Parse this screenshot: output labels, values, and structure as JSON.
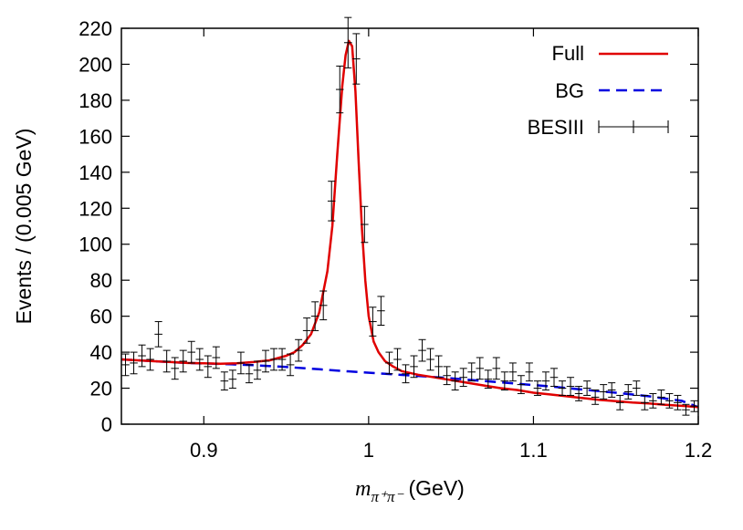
{
  "chart_data": {
    "type": "line",
    "xlabel_math": "m",
    "xlabel_sub": "π⁺π⁻",
    "xlabel_unit": "(GeV)",
    "ylabel": "Events / (0.005 GeV)",
    "xlim": [
      0.85,
      1.2
    ],
    "ylim": [
      0,
      220
    ],
    "x_ticks": [
      0.9,
      1.0,
      1.1,
      1.2
    ],
    "x_tick_labels": [
      "0.9",
      "1",
      "1.1",
      "1.2"
    ],
    "y_ticks": [
      0,
      20,
      40,
      60,
      80,
      100,
      120,
      140,
      160,
      180,
      200,
      220
    ],
    "y_tick_labels": [
      "0",
      "20",
      "40",
      "60",
      "80",
      "100",
      "120",
      "140",
      "160",
      "180",
      "200",
      "220"
    ],
    "legend_position": "top-right",
    "series": [
      {
        "name": "Full",
        "style": "solid-line",
        "color": "#e00000",
        "x": [
          0.85,
          0.86,
          0.87,
          0.88,
          0.89,
          0.9,
          0.91,
          0.92,
          0.93,
          0.94,
          0.95,
          0.955,
          0.96,
          0.965,
          0.97,
          0.975,
          0.978,
          0.981,
          0.984,
          0.986,
          0.988,
          0.99,
          0.992,
          0.994,
          0.996,
          0.998,
          1.0,
          1.003,
          1.006,
          1.01,
          1.015,
          1.02,
          1.03,
          1.04,
          1.05,
          1.06,
          1.07,
          1.08,
          1.09,
          1.1,
          1.11,
          1.12,
          1.13,
          1.14,
          1.15,
          1.16,
          1.17,
          1.18,
          1.19,
          1.2
        ],
        "y": [
          36,
          35.5,
          35,
          34.5,
          34,
          33.8,
          33.6,
          33.8,
          34.5,
          35.5,
          38,
          40,
          44,
          50,
          62,
          85,
          110,
          150,
          188,
          205,
          213,
          210,
          185,
          145,
          108,
          80,
          60,
          46,
          40,
          35,
          32,
          29.5,
          27.5,
          26,
          24.5,
          23,
          21.5,
          20,
          19,
          17.5,
          16.5,
          15.5,
          14.5,
          13.5,
          12.8,
          12,
          11.5,
          10.8,
          10.2,
          9.5
        ]
      },
      {
        "name": "BG",
        "style": "dashed-line",
        "color": "#0000e0",
        "x": [
          0.85,
          0.87,
          0.89,
          0.91,
          0.93,
          0.95,
          0.97,
          0.99,
          1.01,
          1.03,
          1.05,
          1.07,
          1.09,
          1.11,
          1.13,
          1.15,
          1.17,
          1.19,
          1.2
        ],
        "y": [
          36,
          35,
          34,
          33.5,
          32.8,
          31.8,
          30.5,
          29.2,
          28,
          26.8,
          25.5,
          24,
          22.5,
          21,
          19.2,
          17.5,
          15.5,
          13,
          9.5
        ]
      },
      {
        "name": "BESIII",
        "style": "error-bars",
        "color": "#000000",
        "points": [
          {
            "x": 0.8525,
            "y": 33,
            "err": 6
          },
          {
            "x": 0.8575,
            "y": 34,
            "err": 6
          },
          {
            "x": 0.8625,
            "y": 38,
            "err": 6
          },
          {
            "x": 0.8675,
            "y": 36,
            "err": 6
          },
          {
            "x": 0.8725,
            "y": 50,
            "err": 7
          },
          {
            "x": 0.8775,
            "y": 35,
            "err": 6
          },
          {
            "x": 0.8825,
            "y": 31,
            "err": 6
          },
          {
            "x": 0.8875,
            "y": 35,
            "err": 6
          },
          {
            "x": 0.8925,
            "y": 40,
            "err": 6
          },
          {
            "x": 0.8975,
            "y": 36,
            "err": 6
          },
          {
            "x": 0.9025,
            "y": 32,
            "err": 6
          },
          {
            "x": 0.9075,
            "y": 37,
            "err": 6
          },
          {
            "x": 0.9125,
            "y": 24,
            "err": 5
          },
          {
            "x": 0.9175,
            "y": 25,
            "err": 5
          },
          {
            "x": 0.9225,
            "y": 34,
            "err": 6
          },
          {
            "x": 0.9275,
            "y": 28,
            "err": 5
          },
          {
            "x": 0.9325,
            "y": 30,
            "err": 5
          },
          {
            "x": 0.9375,
            "y": 35,
            "err": 6
          },
          {
            "x": 0.9425,
            "y": 36,
            "err": 6
          },
          {
            "x": 0.9475,
            "y": 36,
            "err": 6
          },
          {
            "x": 0.9525,
            "y": 33,
            "err": 6
          },
          {
            "x": 0.9575,
            "y": 41,
            "err": 6
          },
          {
            "x": 0.9625,
            "y": 52,
            "err": 7
          },
          {
            "x": 0.9675,
            "y": 60,
            "err": 8
          },
          {
            "x": 0.9725,
            "y": 66,
            "err": 8
          },
          {
            "x": 0.9775,
            "y": 124,
            "err": 11
          },
          {
            "x": 0.9825,
            "y": 186,
            "err": 13
          },
          {
            "x": 0.9875,
            "y": 212,
            "err": 14
          },
          {
            "x": 0.9925,
            "y": 203,
            "err": 14
          },
          {
            "x": 0.9975,
            "y": 111,
            "err": 10
          },
          {
            "x": 1.0025,
            "y": 57,
            "err": 8
          },
          {
            "x": 1.0075,
            "y": 63,
            "err": 8
          },
          {
            "x": 1.0125,
            "y": 34,
            "err": 6
          },
          {
            "x": 1.0175,
            "y": 36,
            "err": 6
          },
          {
            "x": 1.0225,
            "y": 28,
            "err": 5
          },
          {
            "x": 1.0275,
            "y": 32,
            "err": 6
          },
          {
            "x": 1.0325,
            "y": 41,
            "err": 6
          },
          {
            "x": 1.0375,
            "y": 36,
            "err": 6
          },
          {
            "x": 1.0425,
            "y": 32,
            "err": 6
          },
          {
            "x": 1.0475,
            "y": 27,
            "err": 5
          },
          {
            "x": 1.0525,
            "y": 24,
            "err": 5
          },
          {
            "x": 1.0575,
            "y": 26,
            "err": 5
          },
          {
            "x": 1.0625,
            "y": 29,
            "err": 5
          },
          {
            "x": 1.0675,
            "y": 31,
            "err": 6
          },
          {
            "x": 1.0725,
            "y": 25,
            "err": 5
          },
          {
            "x": 1.0775,
            "y": 31,
            "err": 6
          },
          {
            "x": 1.0825,
            "y": 24,
            "err": 5
          },
          {
            "x": 1.0875,
            "y": 29,
            "err": 5
          },
          {
            "x": 1.0925,
            "y": 22,
            "err": 5
          },
          {
            "x": 1.0975,
            "y": 29,
            "err": 5
          },
          {
            "x": 1.1025,
            "y": 20,
            "err": 4
          },
          {
            "x": 1.1075,
            "y": 24,
            "err": 5
          },
          {
            "x": 1.1125,
            "y": 26,
            "err": 5
          },
          {
            "x": 1.1175,
            "y": 20,
            "err": 4
          },
          {
            "x": 1.1225,
            "y": 21,
            "err": 5
          },
          {
            "x": 1.1275,
            "y": 17,
            "err": 4
          },
          {
            "x": 1.1325,
            "y": 20,
            "err": 4
          },
          {
            "x": 1.1375,
            "y": 15,
            "err": 4
          },
          {
            "x": 1.1425,
            "y": 18,
            "err": 4
          },
          {
            "x": 1.1475,
            "y": 19,
            "err": 4
          },
          {
            "x": 1.1525,
            "y": 12,
            "err": 4
          },
          {
            "x": 1.1575,
            "y": 18,
            "err": 4
          },
          {
            "x": 1.1625,
            "y": 20,
            "err": 4
          },
          {
            "x": 1.1675,
            "y": 12,
            "err": 4
          },
          {
            "x": 1.1725,
            "y": 13,
            "err": 4
          },
          {
            "x": 1.1775,
            "y": 15,
            "err": 4
          },
          {
            "x": 1.1825,
            "y": 13,
            "err": 4
          },
          {
            "x": 1.1875,
            "y": 12,
            "err": 4
          },
          {
            "x": 1.1925,
            "y": 8,
            "err": 3
          },
          {
            "x": 1.1975,
            "y": 10,
            "err": 3
          }
        ]
      }
    ]
  }
}
